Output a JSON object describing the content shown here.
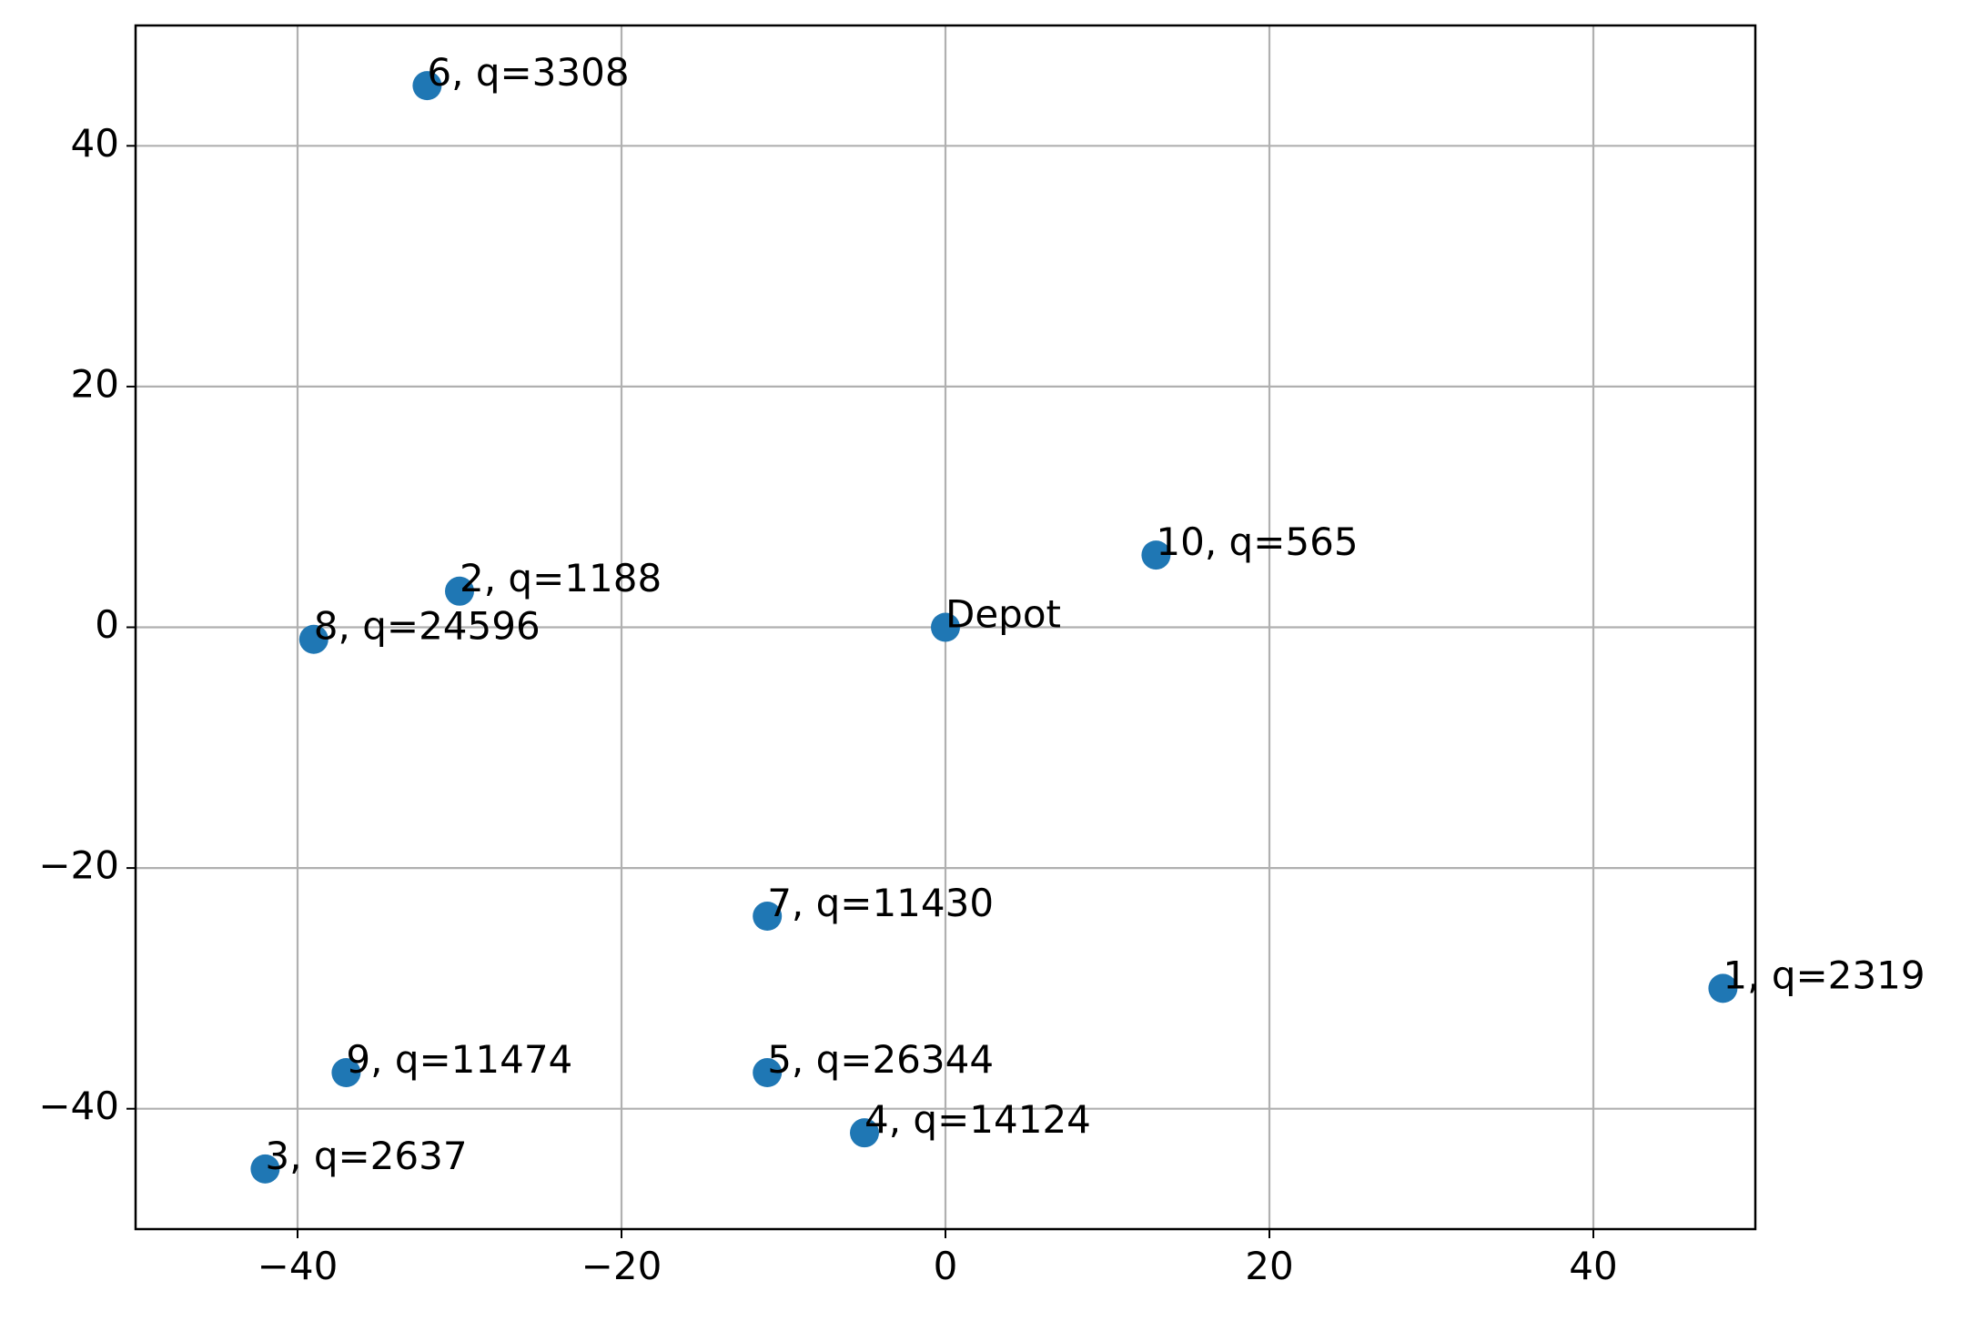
{
  "chart_data": {
    "type": "scatter",
    "x": [
      0,
      48,
      -30,
      -42,
      -5,
      -11,
      -32,
      -11,
      -39,
      -37,
      13
    ],
    "values": [
      0,
      -30,
      3,
      -45,
      -42,
      -37,
      45,
      -24,
      -1,
      -37,
      6
    ],
    "point_labels": [
      "Depot",
      "1, q=2319",
      "2, q=1188",
      "3, q=2637",
      "4, q=14124",
      "5, q=26344",
      "6, q=3308",
      "7, q=11430",
      "8, q=24596",
      "9, q=11474",
      "10, q=565"
    ],
    "color": "#1f77b4",
    "xlim": [
      -50,
      50
    ],
    "ylim": [
      -50,
      50
    ],
    "xticks": [
      {
        "value": -40,
        "label": "−40"
      },
      {
        "value": -20,
        "label": "−20"
      },
      0,
      20,
      40
    ],
    "yticks": [
      {
        "value": -40,
        "label": "−40"
      },
      {
        "value": -20,
        "label": "−20"
      },
      0,
      20,
      40
    ],
    "grid": true
  }
}
